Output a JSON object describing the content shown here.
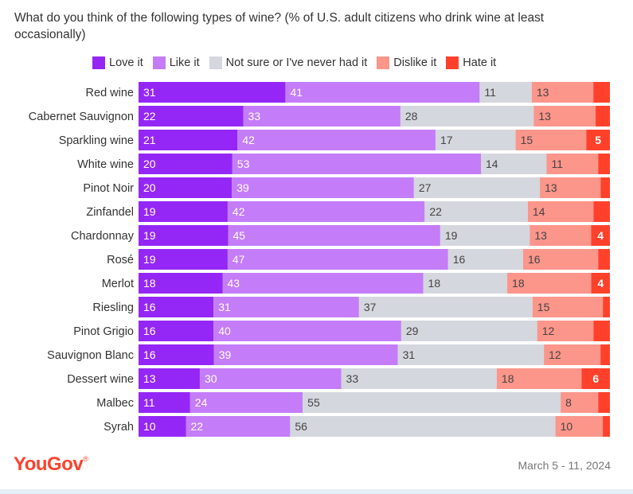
{
  "brand": {
    "logo": "YouGov",
    "logo_mark": "®"
  },
  "footer": {
    "date": "March 5 - 11, 2024"
  },
  "chart_data": {
    "type": "bar",
    "orientation": "horizontal",
    "stacked": true,
    "title": "What do you think of the following types of wine? (% of U.S. adult citizens who drink wine at least occasionally)",
    "xlabel": "",
    "ylabel": "",
    "legend_position": "top",
    "categories": [
      "Red wine",
      "Cabernet Sauvignon",
      "Sparkling wine",
      "White wine",
      "Pinot Noir",
      "Zinfandel",
      "Chardonnay",
      "Rosé",
      "Merlot",
      "Riesling",
      "Pinot Grigio",
      "Sauvignon Blanc",
      "Dessert wine",
      "Malbec",
      "Syrah"
    ],
    "series": [
      {
        "name": "Love it",
        "color": "#9427f5",
        "label_color": "#ffffff",
        "values": [
          31,
          22,
          21,
          20,
          20,
          19,
          19,
          19,
          18,
          16,
          16,
          16,
          13,
          11,
          10
        ],
        "labels": [
          "31",
          "22",
          "21",
          "20",
          "20",
          "19",
          "19",
          "19",
          "18",
          "16",
          "16",
          "16",
          "13",
          "11",
          "10"
        ]
      },
      {
        "name": "Like it",
        "color": "#c47cf8",
        "label_color": "#ffffff",
        "values": [
          41,
          33,
          42,
          53,
          39,
          42,
          45,
          47,
          43,
          31,
          40,
          39,
          30,
          24,
          22
        ],
        "labels": [
          "41",
          "33",
          "42",
          "53",
          "39",
          "42",
          "45",
          "47",
          "43",
          "31",
          "40",
          "39",
          "30",
          "24",
          "22"
        ]
      },
      {
        "name": "Not sure or I've never had it",
        "color": "#d4d7dd",
        "label_color": "#444444",
        "values": [
          11,
          28,
          17,
          14,
          27,
          22,
          19,
          16,
          18,
          37,
          29,
          31,
          33,
          55,
          56
        ],
        "labels": [
          "11",
          "28",
          "17",
          "14",
          "27",
          "22",
          "19",
          "16",
          "18",
          "37",
          "29",
          "31",
          "33",
          "55",
          "56"
        ]
      },
      {
        "name": "Dislike it",
        "color": "#fc958a",
        "label_color": "#444444",
        "values": [
          13,
          13,
          15,
          11,
          13,
          14,
          13,
          16,
          18,
          15,
          12,
          12,
          18,
          8,
          10
        ],
        "labels": [
          "13",
          "13",
          "15",
          "11",
          "13",
          "14",
          "13",
          "16",
          "18",
          "15",
          "12",
          "12",
          "18",
          "8",
          "10"
        ]
      },
      {
        "name": "Hate it",
        "color": "#ff412c",
        "label_color": "#ffffff",
        "values": [
          3.5,
          3,
          5,
          2.5,
          2,
          3.5,
          4,
          2.5,
          4,
          1.5,
          3.5,
          2,
          6,
          2.5,
          1.5
        ],
        "labels": [
          "",
          "",
          "5",
          "",
          "",
          "",
          "4",
          "",
          "4",
          "",
          "",
          "",
          "6",
          "",
          ""
        ]
      }
    ]
  }
}
